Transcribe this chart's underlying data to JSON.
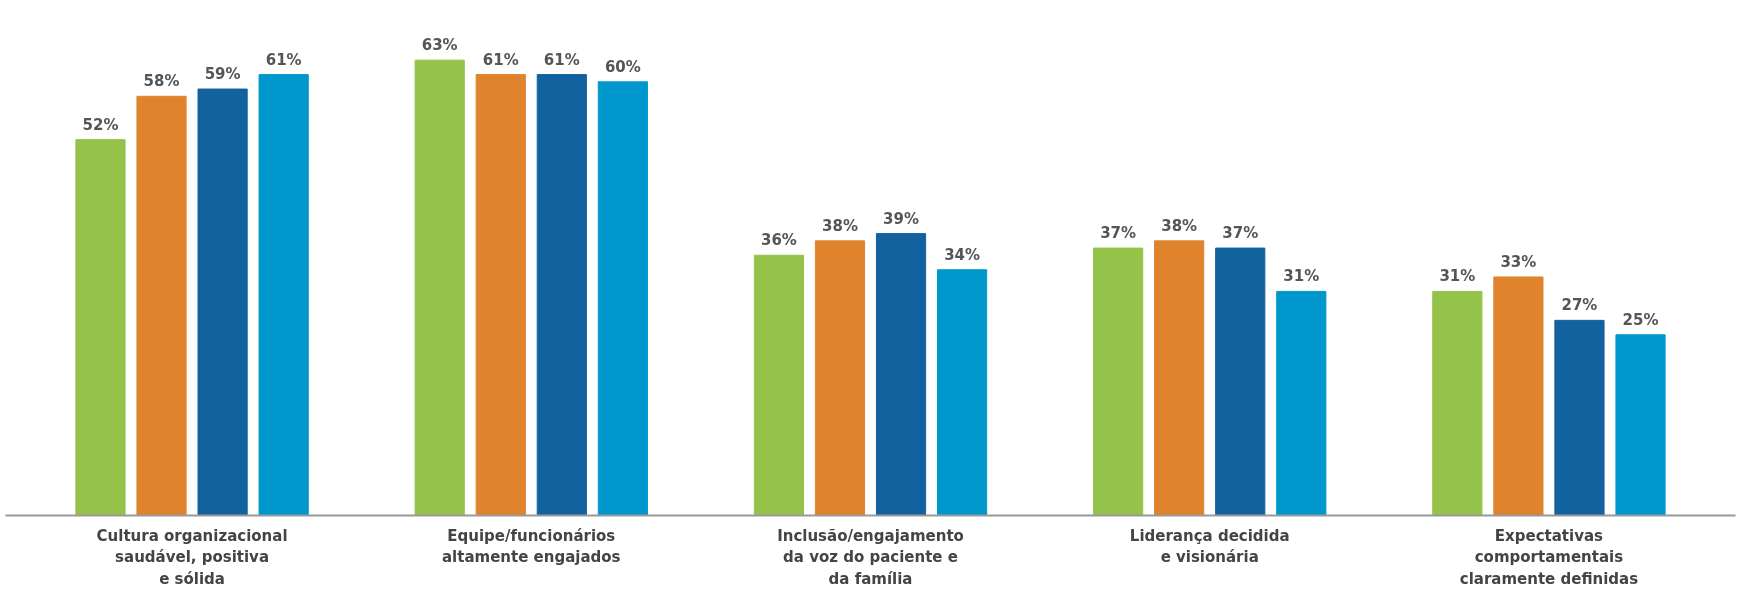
{
  "chart_data": {
    "type": "bar",
    "categories": [
      "Cultura organizacional\nsaudável, positiva\ne sólida",
      "Equipe/funcionários\naltamente engajados",
      "Inclusão/engajamento\nda voz do paciente e\nda família",
      "Liderança decidida\ne visionária",
      "Expectativas\ncomportamentais\nclaramente definidas"
    ],
    "series": [
      {
        "color": "#95c34a",
        "values": [
          52,
          63,
          36,
          37,
          31
        ],
        "value_labels": [
          "52%",
          "63%",
          "36%",
          "37%",
          "31%"
        ]
      },
      {
        "color": "#e0832d",
        "values": [
          58,
          61,
          38,
          38,
          33
        ],
        "value_labels": [
          "58%",
          "61%",
          "38%",
          "38%",
          "33%"
        ]
      },
      {
        "color": "#11629e",
        "values": [
          59,
          61,
          39,
          37,
          27
        ],
        "value_labels": [
          "59%",
          "61%",
          "39%",
          "37%",
          "27%"
        ]
      },
      {
        "color": "#0098cc",
        "values": [
          61,
          60,
          34,
          31,
          25
        ],
        "value_labels": [
          "61%",
          "60%",
          "34%",
          "31%",
          "25%"
        ]
      }
    ],
    "grid": false,
    "tick_labels": "x"
  }
}
